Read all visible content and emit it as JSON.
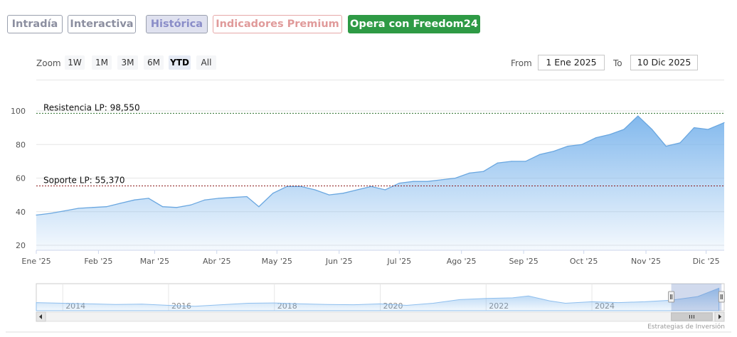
{
  "tabs": [
    {
      "label": "Intradía",
      "state": "normal"
    },
    {
      "label": "Interactiva",
      "state": "normal"
    },
    {
      "label": "Histórica",
      "state": "active"
    },
    {
      "label": "Indicadores Premium",
      "state": "premium"
    },
    {
      "label": "Opera con Freedom24",
      "state": "cta"
    }
  ],
  "zoom": {
    "label": "Zoom",
    "buttons": [
      "1W",
      "1M",
      "3M",
      "6M",
      "YTD",
      "All"
    ],
    "selected": "YTD"
  },
  "range": {
    "from_label": "From",
    "from_value": "1 Ene 2025",
    "to_label": "To",
    "to_value": "10 Dic 2025"
  },
  "chart_data": {
    "type": "area",
    "title": "",
    "xlabel": "",
    "ylabel": "",
    "ylim": [
      20,
      100
    ],
    "y_ticks": [
      "20",
      "40",
      "60",
      "80",
      "100"
    ],
    "x_ticks": [
      "Ene '25",
      "Feb '25",
      "Mar '25",
      "Abr '25",
      "May '25",
      "Jun '25",
      "Jul '25",
      "Ago '25",
      "Sep '25",
      "Oct '25",
      "Nov '25",
      "Dic '25"
    ],
    "x_range": [
      "2025-01-01",
      "2025-12-10"
    ],
    "grid": true,
    "color": "#7cb5ec",
    "series": [
      {
        "points": [
          [
            "2025-01-01",
            38
          ],
          [
            "2025-01-08",
            39
          ],
          [
            "2025-01-15",
            40.5
          ],
          [
            "2025-01-22",
            42
          ],
          [
            "2025-01-29",
            42.5
          ],
          [
            "2025-02-05",
            43
          ],
          [
            "2025-02-12",
            45
          ],
          [
            "2025-02-19",
            47
          ],
          [
            "2025-02-26",
            48
          ],
          [
            "2025-03-05",
            43
          ],
          [
            "2025-03-12",
            42.5
          ],
          [
            "2025-03-19",
            44
          ],
          [
            "2025-03-26",
            47
          ],
          [
            "2025-04-02",
            48
          ],
          [
            "2025-04-09",
            48.5
          ],
          [
            "2025-04-16",
            49
          ],
          [
            "2025-04-22",
            43
          ],
          [
            "2025-04-29",
            51
          ],
          [
            "2025-05-06",
            55
          ],
          [
            "2025-05-13",
            55
          ],
          [
            "2025-05-20",
            53
          ],
          [
            "2025-05-27",
            50
          ],
          [
            "2025-06-03",
            51
          ],
          [
            "2025-06-10",
            53
          ],
          [
            "2025-06-17",
            55
          ],
          [
            "2025-06-24",
            53
          ],
          [
            "2025-07-01",
            57
          ],
          [
            "2025-07-08",
            58
          ],
          [
            "2025-07-15",
            58
          ],
          [
            "2025-07-22",
            59
          ],
          [
            "2025-07-29",
            60
          ],
          [
            "2025-08-05",
            63
          ],
          [
            "2025-08-12",
            64
          ],
          [
            "2025-08-19",
            69
          ],
          [
            "2025-08-26",
            70
          ],
          [
            "2025-09-02",
            70
          ],
          [
            "2025-09-09",
            74
          ],
          [
            "2025-09-16",
            76
          ],
          [
            "2025-09-23",
            79
          ],
          [
            "2025-09-30",
            80
          ],
          [
            "2025-10-07",
            84
          ],
          [
            "2025-10-14",
            86
          ],
          [
            "2025-10-21",
            89
          ],
          [
            "2025-10-28",
            97
          ],
          [
            "2025-11-04",
            89
          ],
          [
            "2025-11-11",
            79
          ],
          [
            "2025-11-18",
            81
          ],
          [
            "2025-11-25",
            90
          ],
          [
            "2025-12-02",
            89
          ],
          [
            "2025-12-10",
            93
          ]
        ]
      }
    ],
    "annotations": [
      {
        "label": "Resistencia LP: 98,550",
        "value": 98.55,
        "color": "#2a6e2a"
      },
      {
        "label": "Soporte LP: 55,370",
        "value": 55.37,
        "color": "#8b1a1a"
      }
    ],
    "navigator": {
      "x_ticks": [
        "2014",
        "2016",
        "2018",
        "2020",
        "2022",
        "2024"
      ],
      "year_range": [
        2013,
        2026
      ],
      "selection": [
        "2025-01-01",
        "2025-12-10"
      ],
      "series": [
        [
          2013.0,
          42
        ],
        [
          2013.5,
          40
        ],
        [
          2014.0,
          38
        ],
        [
          2014.5,
          36
        ],
        [
          2015.0,
          37
        ],
        [
          2015.5,
          33
        ],
        [
          2016.0,
          30
        ],
        [
          2016.5,
          35
        ],
        [
          2017.0,
          40
        ],
        [
          2017.5,
          41
        ],
        [
          2018.0,
          38
        ],
        [
          2018.5,
          36
        ],
        [
          2019.0,
          35
        ],
        [
          2019.5,
          38
        ],
        [
          2020.0,
          33
        ],
        [
          2020.5,
          40
        ],
        [
          2021.0,
          52
        ],
        [
          2021.5,
          56
        ],
        [
          2022.0,
          58
        ],
        [
          2022.3,
          64
        ],
        [
          2022.7,
          48
        ],
        [
          2023.0,
          40
        ],
        [
          2023.5,
          45
        ],
        [
          2024.0,
          42
        ],
        [
          2024.5,
          45
        ],
        [
          2025.0,
          50
        ],
        [
          2025.5,
          62
        ],
        [
          2025.9,
          90
        ]
      ]
    }
  },
  "credits": "Estrategias de Inversión"
}
